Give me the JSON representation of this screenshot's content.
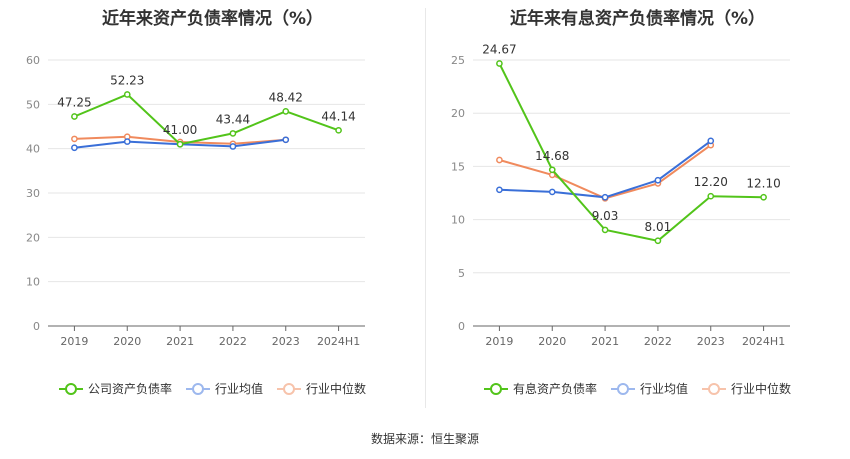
{
  "source_label": "数据来源：恒生聚源",
  "chart_data": [
    {
      "type": "line",
      "title": "近年来资产负债率情况（%）",
      "categories": [
        "2019",
        "2020",
        "2021",
        "2022",
        "2023",
        "2024H1"
      ],
      "ylim": [
        0,
        60
      ],
      "yticks": [
        0,
        10,
        20,
        30,
        40,
        50,
        60
      ],
      "grid": true,
      "legend_position": "bottom",
      "series": [
        {
          "name": "公司资产负债率",
          "color": "#52c41a",
          "values": [
            47.25,
            52.23,
            41.0,
            43.44,
            48.42,
            44.14
          ],
          "labels": [
            "47.25",
            "52.23",
            "41.00",
            "43.44",
            "48.42",
            "44.14"
          ]
        },
        {
          "name": "行业均值",
          "color": "#3a6fd8",
          "values": [
            40.2,
            41.6,
            41.0,
            40.5,
            42.0,
            null
          ]
        },
        {
          "name": "行业中位数",
          "color": "#f08a5d",
          "values": [
            42.2,
            42.7,
            41.5,
            41.1,
            42.0,
            null
          ]
        }
      ]
    },
    {
      "type": "line",
      "title": "近年来有息资产负债率情况（%）",
      "categories": [
        "2019",
        "2020",
        "2021",
        "2022",
        "2023",
        "2024H1"
      ],
      "ylim": [
        0,
        25
      ],
      "yticks": [
        0,
        5,
        10,
        15,
        20,
        25
      ],
      "grid": true,
      "legend_position": "bottom",
      "series": [
        {
          "name": "有息资产负债率",
          "color": "#52c41a",
          "values": [
            24.67,
            14.68,
            9.03,
            8.01,
            12.2,
            12.1
          ],
          "labels": [
            "24.67",
            "14.68",
            "9.03",
            "8.01",
            "12.20",
            "12.10"
          ]
        },
        {
          "name": "行业均值",
          "color": "#3a6fd8",
          "values": [
            12.8,
            12.6,
            12.1,
            13.7,
            17.4,
            null
          ]
        },
        {
          "name": "行业中位数",
          "color": "#f08a5d",
          "values": [
            15.6,
            14.2,
            12.0,
            13.4,
            17.0,
            null
          ]
        }
      ]
    }
  ]
}
